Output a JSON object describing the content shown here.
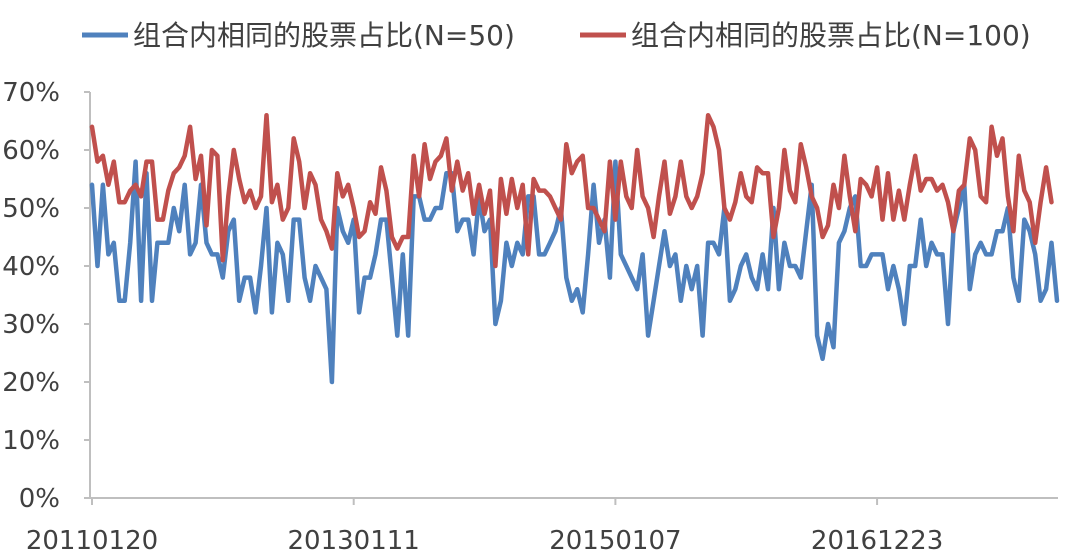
{
  "chart_data": {
    "type": "line",
    "ylim": [
      0,
      0.7
    ],
    "y_ticks": [
      "0%",
      "10%",
      "20%",
      "30%",
      "40%",
      "50%",
      "60%",
      "70%"
    ],
    "x_tick_labels": [
      "20110120",
      "20130111",
      "20150107",
      "20161223"
    ],
    "x_tick_indices": [
      0,
      48,
      96,
      144
    ],
    "grid": false,
    "legend": "top",
    "series": [
      {
        "name": "组合内相同的股票占比(N=50)",
        "color": "#4f81bd",
        "values": [
          0.54,
          0.4,
          0.54,
          0.42,
          0.44,
          0.34,
          0.34,
          0.44,
          0.58,
          0.34,
          0.56,
          0.34,
          0.44,
          0.44,
          0.44,
          0.5,
          0.46,
          0.54,
          0.42,
          0.44,
          0.54,
          0.44,
          0.42,
          0.42,
          0.38,
          0.46,
          0.48,
          0.34,
          0.38,
          0.38,
          0.32,
          0.4,
          0.5,
          0.32,
          0.44,
          0.42,
          0.34,
          0.48,
          0.48,
          0.38,
          0.34,
          0.4,
          0.38,
          0.36,
          0.2,
          0.5,
          0.46,
          0.44,
          0.48,
          0.32,
          0.38,
          0.38,
          0.42,
          0.48,
          0.48,
          0.38,
          0.28,
          0.42,
          0.28,
          0.52,
          0.52,
          0.48,
          0.48,
          0.5,
          0.5,
          0.56,
          0.56,
          0.46,
          0.48,
          0.48,
          0.42,
          0.52,
          0.46,
          0.48,
          0.3,
          0.34,
          0.44,
          0.4,
          0.44,
          0.42,
          0.52,
          0.52,
          0.42,
          0.42,
          0.44,
          0.46,
          0.5,
          0.38,
          0.34,
          0.36,
          0.32,
          0.42,
          0.54,
          0.44,
          0.48,
          0.38,
          0.58,
          0.42,
          0.4,
          0.38,
          0.36,
          0.42,
          0.28,
          0.34,
          0.4,
          0.46,
          0.4,
          0.42,
          0.34,
          0.4,
          0.36,
          0.4,
          0.28,
          0.44,
          0.44,
          0.42,
          0.5,
          0.34,
          0.36,
          0.4,
          0.42,
          0.38,
          0.36,
          0.42,
          0.36,
          0.5,
          0.36,
          0.44,
          0.4,
          0.4,
          0.38,
          0.46,
          0.54,
          0.28,
          0.24,
          0.3,
          0.26,
          0.44,
          0.46,
          0.5,
          0.52,
          0.4,
          0.4,
          0.42,
          0.42,
          0.42,
          0.36,
          0.4,
          0.36,
          0.3,
          0.4,
          0.4,
          0.48,
          0.4,
          0.44,
          0.42,
          0.42,
          0.3,
          0.46,
          0.5,
          0.54,
          0.36,
          0.42,
          0.44,
          0.42,
          0.42,
          0.46,
          0.46,
          0.5,
          0.38,
          0.34,
          0.48,
          0.46,
          0.42,
          0.34,
          0.36,
          0.44,
          0.34
        ]
      },
      {
        "name": "组合内相同的股票占比(N=100)",
        "color": "#c0504d",
        "values": [
          0.64,
          0.58,
          0.59,
          0.54,
          0.58,
          0.51,
          0.51,
          0.53,
          0.54,
          0.52,
          0.58,
          0.58,
          0.48,
          0.48,
          0.53,
          0.56,
          0.57,
          0.59,
          0.64,
          0.55,
          0.59,
          0.47,
          0.6,
          0.59,
          0.41,
          0.52,
          0.6,
          0.55,
          0.51,
          0.53,
          0.5,
          0.52,
          0.66,
          0.51,
          0.54,
          0.48,
          0.5,
          0.62,
          0.58,
          0.5,
          0.56,
          0.54,
          0.48,
          0.46,
          0.43,
          0.56,
          0.52,
          0.54,
          0.5,
          0.45,
          0.46,
          0.51,
          0.49,
          0.57,
          0.53,
          0.45,
          0.43,
          0.45,
          0.45,
          0.59,
          0.52,
          0.61,
          0.55,
          0.58,
          0.59,
          0.62,
          0.53,
          0.58,
          0.53,
          0.56,
          0.49,
          0.54,
          0.49,
          0.53,
          0.4,
          0.55,
          0.49,
          0.55,
          0.5,
          0.54,
          0.42,
          0.55,
          0.53,
          0.53,
          0.52,
          0.5,
          0.48,
          0.61,
          0.56,
          0.58,
          0.59,
          0.5,
          0.5,
          0.48,
          0.46,
          0.58,
          0.48,
          0.58,
          0.52,
          0.5,
          0.6,
          0.52,
          0.5,
          0.45,
          0.52,
          0.58,
          0.49,
          0.52,
          0.58,
          0.52,
          0.5,
          0.52,
          0.56,
          0.66,
          0.64,
          0.6,
          0.5,
          0.48,
          0.51,
          0.56,
          0.52,
          0.51,
          0.57,
          0.56,
          0.56,
          0.45,
          0.5,
          0.6,
          0.53,
          0.51,
          0.61,
          0.57,
          0.52,
          0.5,
          0.45,
          0.47,
          0.54,
          0.5,
          0.59,
          0.52,
          0.46,
          0.55,
          0.54,
          0.52,
          0.57,
          0.48,
          0.56,
          0.48,
          0.53,
          0.48,
          0.54,
          0.59,
          0.53,
          0.55,
          0.55,
          0.53,
          0.54,
          0.51,
          0.46,
          0.53,
          0.54,
          0.62,
          0.6,
          0.52,
          0.51,
          0.64,
          0.59,
          0.62,
          0.52,
          0.46,
          0.59,
          0.53,
          0.51,
          0.44,
          0.51,
          0.57,
          0.51
        ]
      }
    ]
  }
}
